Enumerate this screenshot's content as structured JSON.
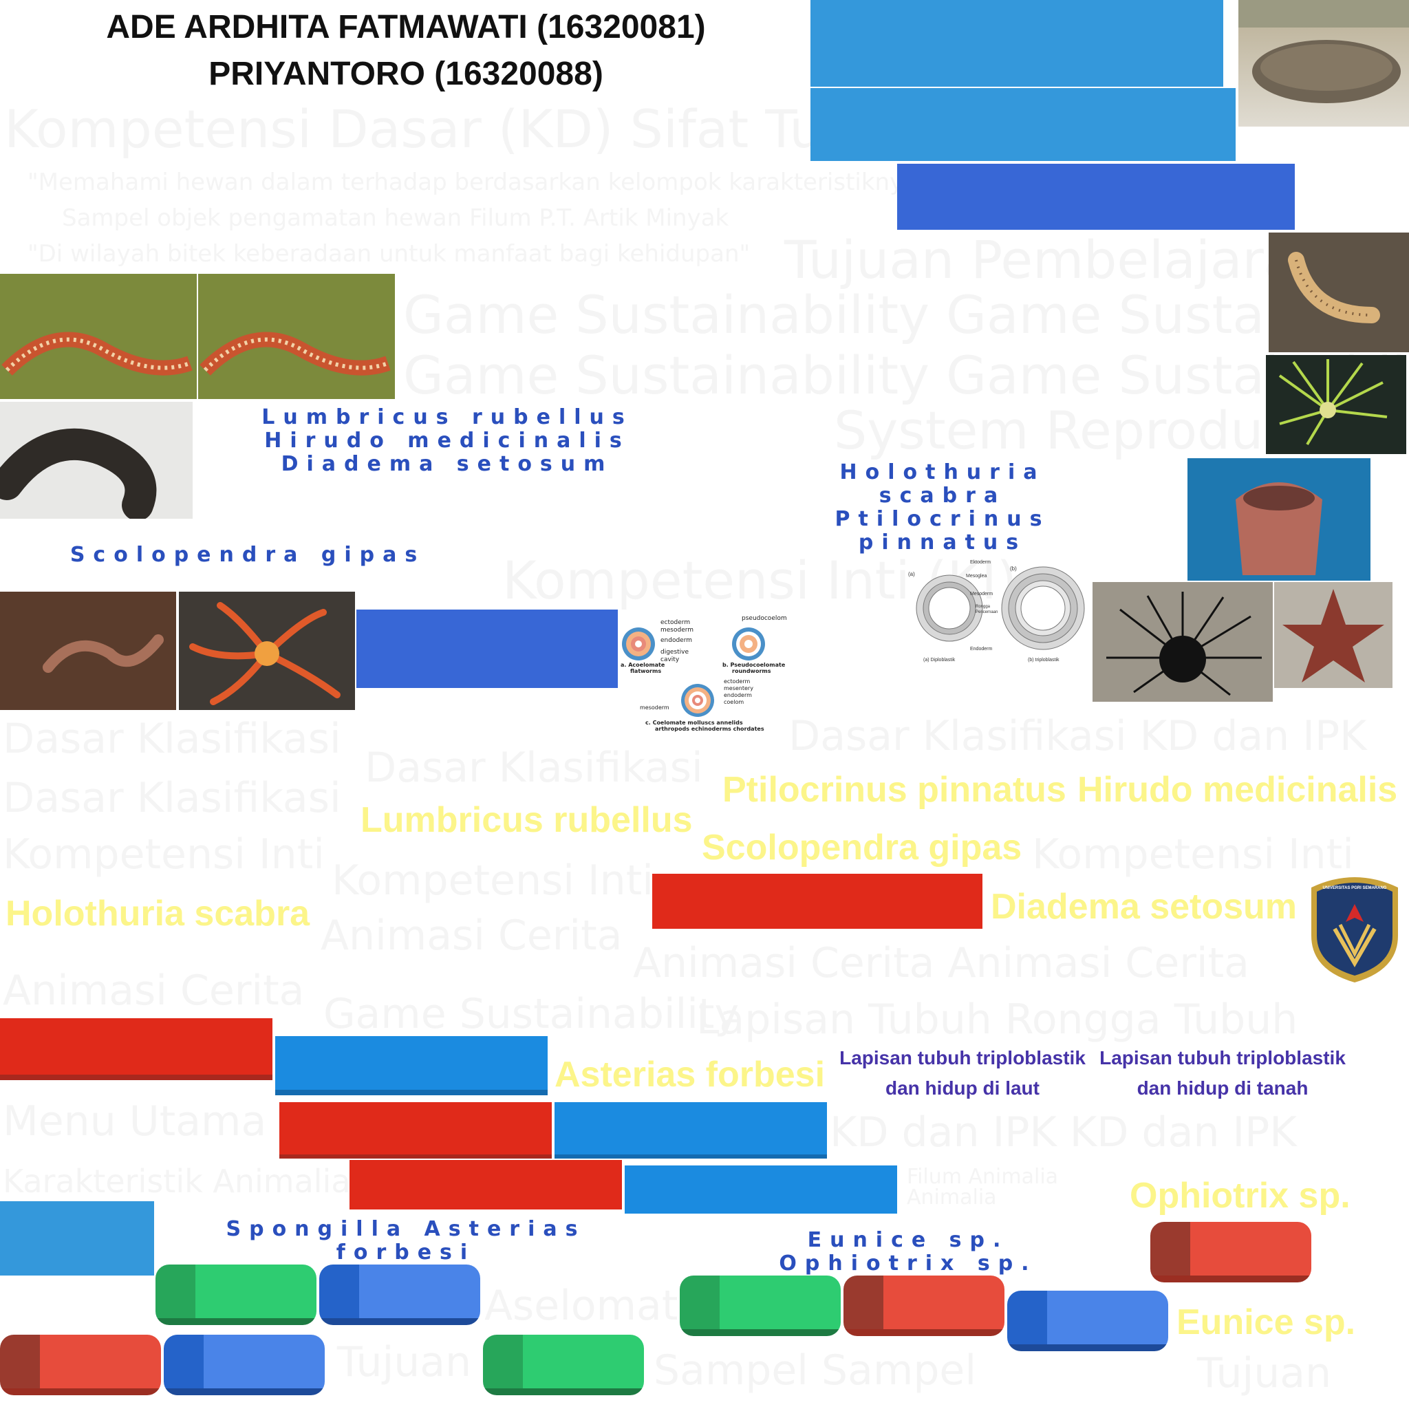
{
  "authors": {
    "line1": "ADE ARDHITA FATMAWATI (16320081)",
    "line2": "PRIYANTORO (16320088)"
  },
  "faint_text": {
    "t1": "Kompetensi Dasar (KD) Sifat Tubuh",
    "t2": "\"Memahami hewan dalam terhadap berdasarkan kelompok karakteristiknya\"",
    "t3": "Sampel objek pengamatan hewan Filum P.T. Artik Minyak",
    "t4": "\"Di wilayah bitek keberadaan untuk manfaat bagi kehidupan\"",
    "t5": "Tujuan Pembelajaran",
    "t6": "Game Sustainability Game Sustainability",
    "t7": "Game Sustainability Game Sustainability",
    "t8": "System Reproduksi",
    "t9": "Kompetensi Inti (KI)",
    "t10": "Dasar Klasifikasi",
    "t11": "Dasar Klasifikasi",
    "t12": "Dasar Klasifikasi KD dan IPK",
    "t13": "Dasar Klasifikasi",
    "t14": "Kompetensi Inti",
    "t15": "Kompetensi Inti",
    "t16": "Kompetensi Inti",
    "t17": "Animasi Cerita",
    "t18": "Animasi Cerita Animasi Cerita",
    "t19": "Animasi Cerita",
    "t20": "Game Sustainability",
    "t21": "Lapisan Tubuh Rongga Tubuh",
    "t22": "Menu Utama",
    "t23": "KD dan IPK KD dan IPK",
    "t24": "Karakteristik Animalia",
    "t25": "Filum Animalia Animalia",
    "t26": "Aselomata",
    "t27": "Tujuan",
    "t28": "Sampel Sampel",
    "t29": "Tujuan"
  },
  "blue_labels": {
    "group1": "Lumbricus rubellus Hirudo medicinalis Diadema setosum",
    "group2": "Scolopendra gipas",
    "group3": "Holothuria scabra Ptilocrinus pinnatus",
    "group4": "Spongilla Asterias forbesi",
    "group5": "Eunice sp. Ophiotrix sp."
  },
  "yellow_labels": {
    "ptilocrinus": "Ptilocrinus pinnatus",
    "hirudo": "Hirudo medicinalis",
    "lumbricus": "Lumbricus rubellus",
    "scolopendra": "Scolopendra gipas",
    "holothuria": "Holothuria scabra",
    "diadema": "Diadema setosum",
    "asterias": "Asterias forbesi",
    "ophiotrix": "Ophiotrix sp.",
    "eunice": "Eunice sp."
  },
  "purple_labels": {
    "laut_line1": "Lapisan tubuh triploblastik",
    "laut_line2": "dan hidup di laut",
    "tanah_line1": "Lapisan tubuh triploblastik",
    "tanah_line2": "dan hidup di tanah"
  },
  "diagram1": {
    "ectoderm": "ectoderm",
    "mesoderm": "mesoderm",
    "endoderm": "endoderm",
    "digestive": "digestive",
    "cavity": "cavity",
    "pseudocoelom": "pseudocoelom",
    "cap_a1": "a.  Acoelomate",
    "cap_a2": "flatworms",
    "cap_b1": "b.  Pseudocoelomate",
    "cap_b2": "roundworms",
    "ectoderm2": "ectoderm",
    "mesentery": "mesentery",
    "endoderm2": "endoderm",
    "coelom": "coelom",
    "mesoderm2": "mesoderm",
    "cap_c1": "c.  Coelomate molluscs annelids",
    "cap_c2": "arthropods echinoderms chordates"
  },
  "diagram2": {
    "ektoderm": "Ektoderm",
    "mesoglea": "Mesoglea",
    "mesoderm": "Mesoderm",
    "rongga1": "Rongga",
    "rongga2": "Pencernaan",
    "endoderm": "Endoderm",
    "a": "(a)",
    "b": "(b)",
    "cap_a": "(a) Diploblastik",
    "cap_b": "(b) triploblastik"
  },
  "logo": {
    "text": "UNIVERSITAS PGRI SEMARANG"
  },
  "colors": {
    "light_blue": "#3498db",
    "blue": "#3867d6",
    "red": "#e02a1a",
    "yellow": "#fcf58a",
    "purple": "#4633a8"
  }
}
